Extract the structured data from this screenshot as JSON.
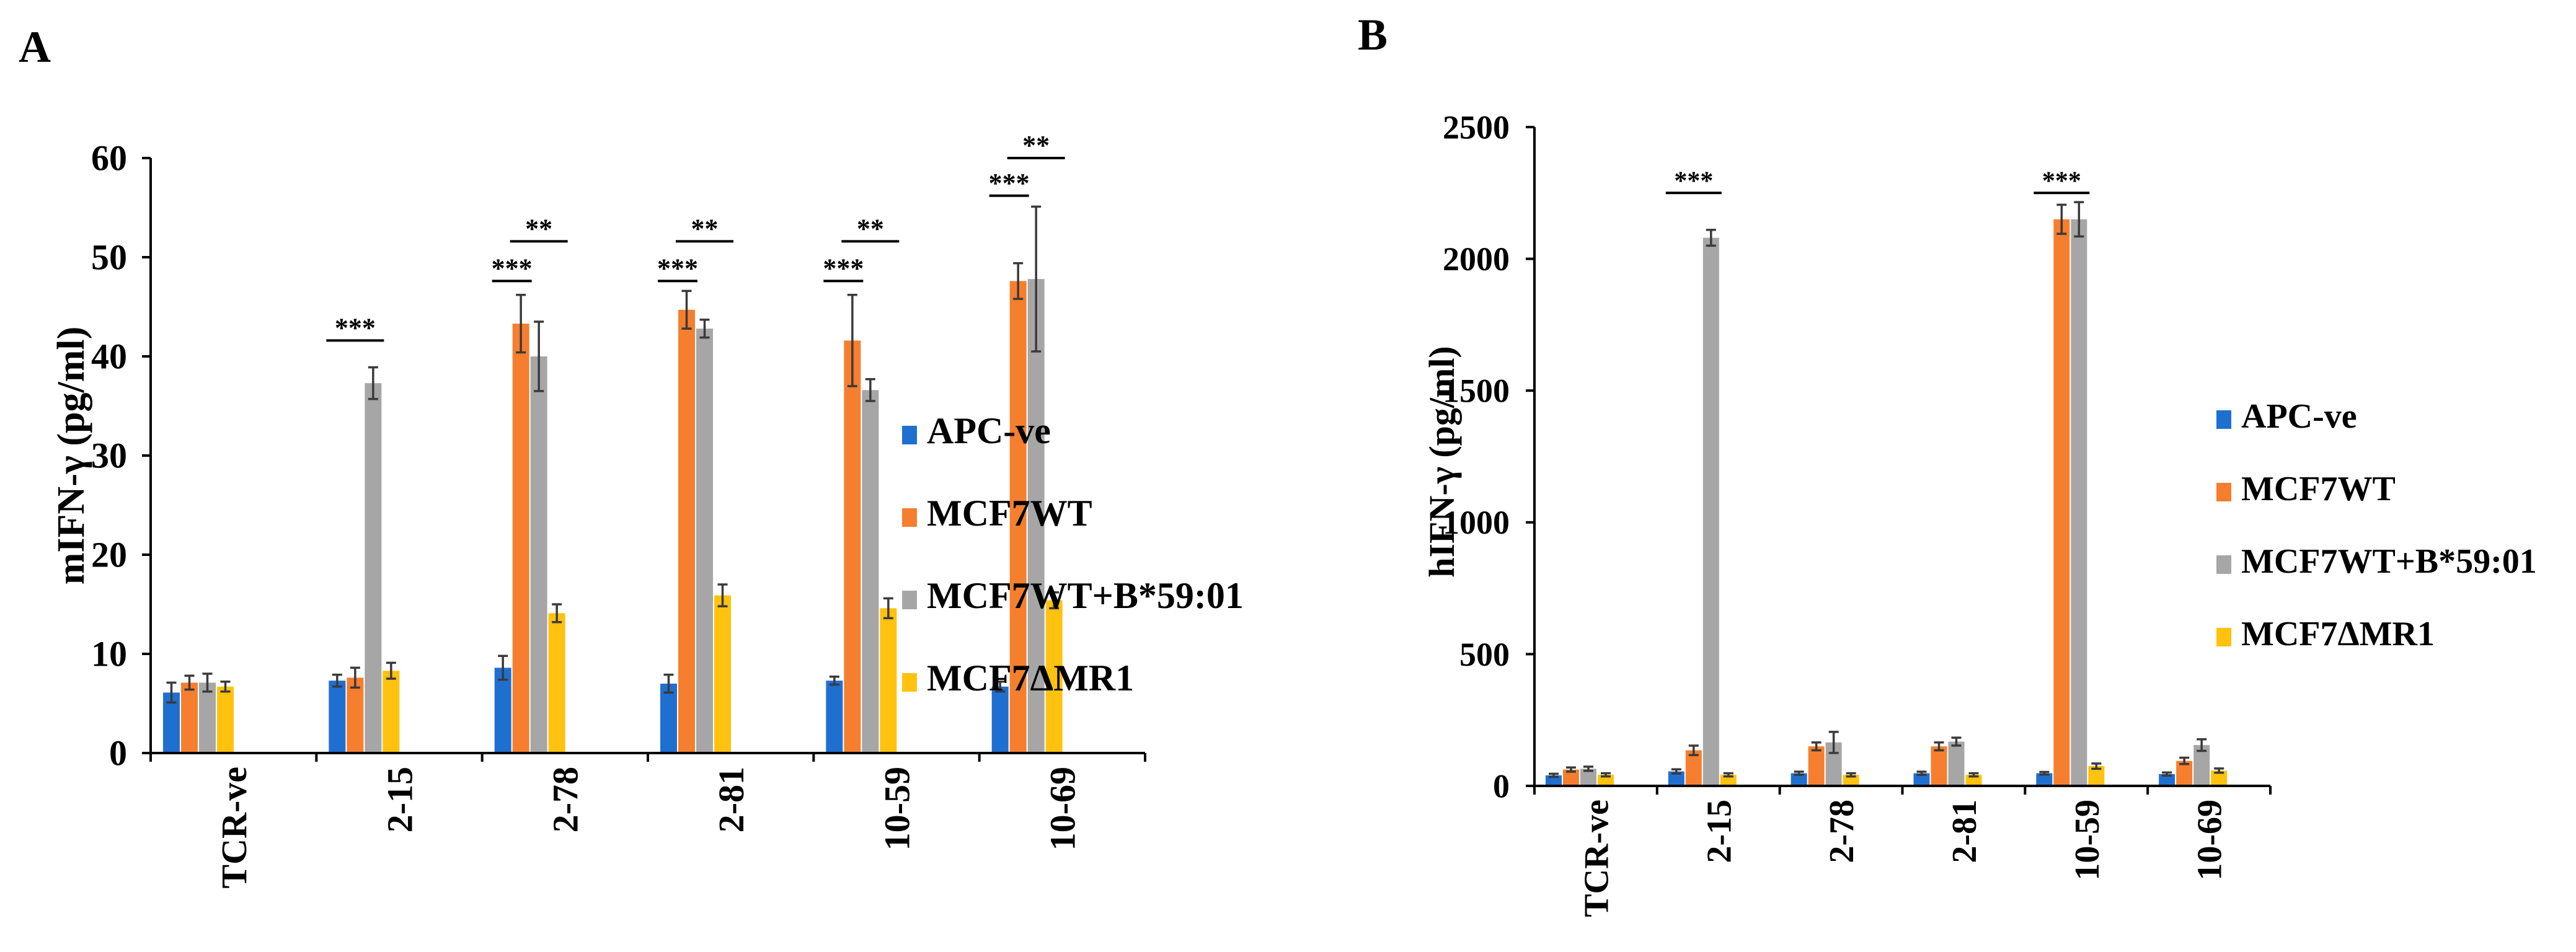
{
  "chart_data": [
    {
      "type": "bar",
      "panel_label": "A",
      "ylabel": "mIFN-γ (pg/ml)",
      "ylim": [
        0,
        60
      ],
      "yticks": [
        "0",
        "10",
        "20",
        "30",
        "40",
        "50",
        "60"
      ],
      "categories": [
        "TCR-ve",
        "2-15",
        "2-78",
        "2-81",
        "10-59",
        "10-69"
      ],
      "series": [
        {
          "name": "APC-ve",
          "color": "#1f6fd1",
          "values": [
            6.1,
            7.3,
            8.6,
            7.0,
            7.3,
            6.7
          ],
          "errors": [
            1.0,
            0.6,
            1.2,
            0.9,
            0.4,
            0.5
          ]
        },
        {
          "name": "MCF7WT",
          "color": "#f57f2e",
          "values": [
            7.1,
            7.6,
            43.3,
            44.7,
            41.6,
            47.6
          ],
          "errors": [
            0.7,
            1.0,
            2.9,
            1.9,
            4.6,
            1.8
          ]
        },
        {
          "name": "MCF7WT+B*59:01",
          "color": "#a6a6a6",
          "values": [
            7.1,
            37.3,
            40.0,
            42.8,
            36.6,
            47.8
          ],
          "errors": [
            0.9,
            1.6,
            3.5,
            0.9,
            1.1,
            7.3
          ]
        },
        {
          "name": "MCF7ΔMR1",
          "color": "#ffc20e",
          "values": [
            6.7,
            8.3,
            14.1,
            15.9,
            14.6,
            15.4
          ],
          "errors": [
            0.5,
            0.8,
            0.9,
            1.1,
            1.0,
            0.8
          ]
        }
      ],
      "significance": [
        {
          "label": "***",
          "category": "2-15",
          "from_series": 0,
          "to_series": 2,
          "level": 41.6
        },
        {
          "label": "***",
          "category": "2-78",
          "from_series": 0,
          "to_series": 1,
          "level": 47.6
        },
        {
          "label": "**",
          "category": "2-78",
          "from_series": 1,
          "to_series": 3,
          "level": 51.6
        },
        {
          "label": "***",
          "category": "2-81",
          "from_series": 0,
          "to_series": 1,
          "level": 47.6
        },
        {
          "label": "**",
          "category": "2-81",
          "from_series": 1,
          "to_series": 3,
          "level": 51.6
        },
        {
          "label": "***",
          "category": "10-59",
          "from_series": 0,
          "to_series": 1,
          "level": 47.6
        },
        {
          "label": "**",
          "category": "10-59",
          "from_series": 1,
          "to_series": 3,
          "level": 51.6
        },
        {
          "label": "***",
          "category": "10-69",
          "from_series": 0,
          "to_series": 1,
          "level": 56.2
        },
        {
          "label": "**",
          "category": "10-69",
          "from_series": 1,
          "to_series": 3,
          "level": 60.0
        }
      ],
      "legend_position": "right"
    },
    {
      "type": "bar",
      "panel_label": "B",
      "ylabel": "hIFN-γ (pg/ml)",
      "ylim": [
        0,
        2500
      ],
      "yticks": [
        "0",
        "500",
        "1000",
        "1500",
        "2000",
        "2500"
      ],
      "categories": [
        "TCR-ve",
        "2-15",
        "2-78",
        "2-81",
        "10-59",
        "10-69"
      ],
      "series": [
        {
          "name": "APC-ve",
          "color": "#1f6fd1",
          "values": [
            40,
            55,
            48,
            48,
            48,
            45
          ],
          "errors": [
            6,
            8,
            6,
            6,
            5,
            6
          ]
        },
        {
          "name": "MCF7WT",
          "color": "#f57f2e",
          "values": [
            62,
            135,
            150,
            150,
            2150,
            95
          ],
          "errors": [
            8,
            18,
            15,
            15,
            55,
            12
          ]
        },
        {
          "name": "MCF7WT+B*59:01",
          "color": "#a6a6a6",
          "values": [
            65,
            2080,
            165,
            168,
            2150,
            155
          ],
          "errors": [
            8,
            30,
            40,
            15,
            65,
            22
          ]
        },
        {
          "name": "MCF7ΔMR1",
          "color": "#ffc20e",
          "values": [
            42,
            42,
            42,
            42,
            75,
            58
          ],
          "errors": [
            6,
            6,
            6,
            6,
            10,
            8
          ]
        }
      ],
      "significance": [
        {
          "label": "***",
          "category": "2-15",
          "from_series": 0,
          "to_series": 2,
          "level": 2250
        },
        {
          "label": "***",
          "category": "10-59",
          "from_series": 0,
          "to_series": 2,
          "level": 2250
        }
      ],
      "legend_position": "right"
    }
  ]
}
